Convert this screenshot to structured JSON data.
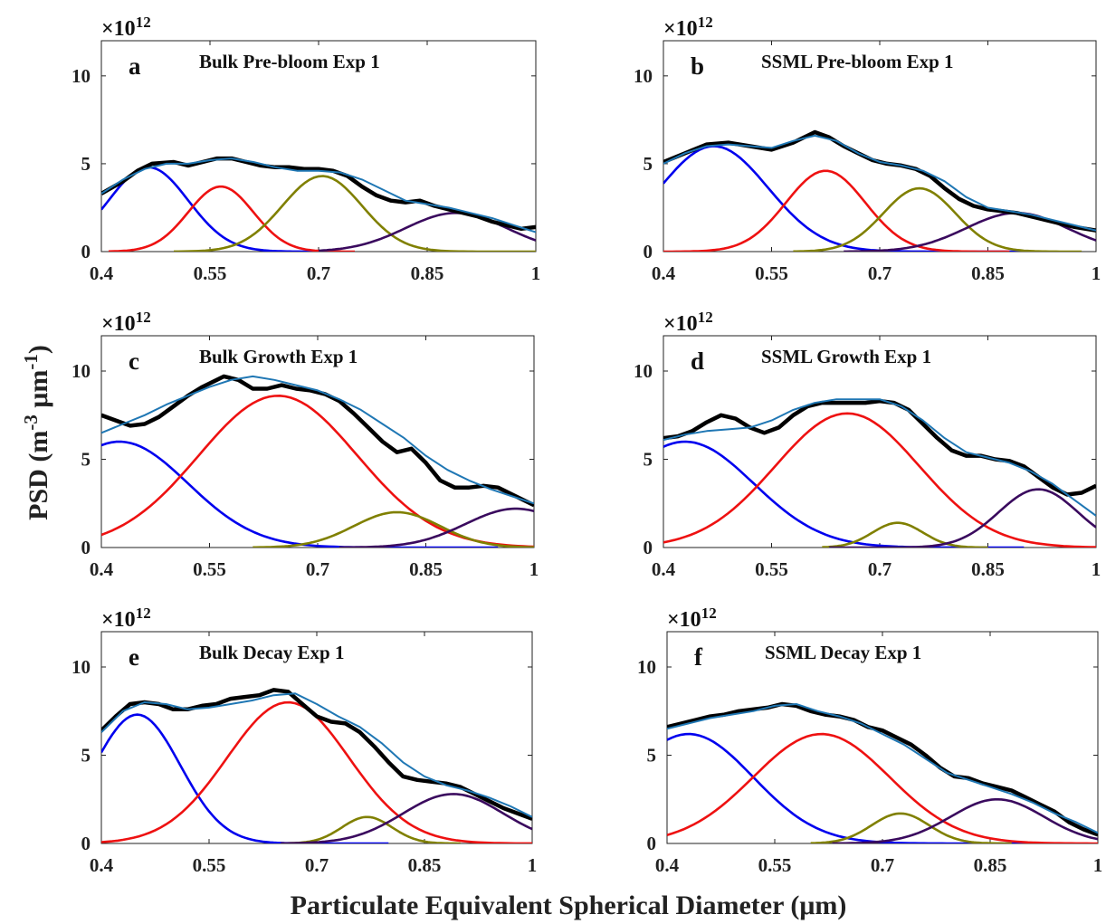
{
  "figure": {
    "xlabel": "Particulate Equivalent Spherical Diameter (μm)",
    "ylabel_main": "PSD (m",
    "ylabel_sup1": "-3",
    "ylabel_mid": " μm",
    "ylabel_sup2": "-1",
    "ylabel_end": ")",
    "exp_base": "×10",
    "exp_power": "12",
    "series_colors": {
      "measured": "#000000",
      "fit": "#1f77b4",
      "mode1": "#0000ee",
      "mode2": "#ee1111",
      "mode3": "#808000",
      "mode4": "#3a0a5e"
    }
  },
  "chart_data": [
    {
      "type": "line",
      "letter": "a",
      "title": "Bulk Pre-bloom Exp 1",
      "xlim": [
        0.4,
        1.0
      ],
      "ylim": [
        0,
        12
      ],
      "xticks": [
        "0.4",
        "0.55",
        "0.7",
        "0.85",
        "1"
      ],
      "yticks": [
        "0",
        "5",
        "10"
      ],
      "grid": false,
      "measured": {
        "x": [
          0.4,
          0.43,
          0.45,
          0.47,
          0.5,
          0.52,
          0.55,
          0.56,
          0.58,
          0.6,
          0.62,
          0.64,
          0.66,
          0.68,
          0.7,
          0.72,
          0.74,
          0.76,
          0.78,
          0.8,
          0.82,
          0.84,
          0.86,
          0.88,
          0.9,
          0.92,
          0.94,
          0.96,
          0.98,
          1.0
        ],
        "y": [
          3.3,
          4.0,
          4.6,
          5.0,
          5.1,
          4.9,
          5.2,
          5.3,
          5.3,
          5.1,
          4.9,
          4.8,
          4.8,
          4.7,
          4.7,
          4.6,
          4.3,
          3.7,
          3.2,
          2.9,
          2.8,
          2.9,
          2.6,
          2.4,
          2.2,
          2.0,
          1.7,
          1.5,
          1.3,
          1.4
        ]
      },
      "fit": {
        "x": [
          0.4,
          0.43,
          0.46,
          0.49,
          0.52,
          0.55,
          0.58,
          0.61,
          0.64,
          0.67,
          0.7,
          0.73,
          0.76,
          0.79,
          0.82,
          0.85,
          0.88,
          0.91,
          0.94,
          0.97,
          1.0
        ],
        "y": [
          3.3,
          4.1,
          4.7,
          5.0,
          5.0,
          5.2,
          5.3,
          5.1,
          4.8,
          4.6,
          4.6,
          4.5,
          4.1,
          3.5,
          2.9,
          2.7,
          2.5,
          2.2,
          1.9,
          1.5,
          1.1
        ]
      },
      "modes": [
        {
          "amplitude": 4.8,
          "center": 0.465,
          "sigma": 0.055,
          "x_range": [
            0.4,
            0.72
          ]
        },
        {
          "amplitude": 3.7,
          "center": 0.565,
          "sigma": 0.045,
          "x_range": [
            0.41,
            0.75
          ]
        },
        {
          "amplitude": 4.3,
          "center": 0.705,
          "sigma": 0.055,
          "x_range": [
            0.5,
            1.0
          ]
        },
        {
          "amplitude": 2.2,
          "center": 0.89,
          "sigma": 0.07,
          "x_range": [
            0.7,
            1.0
          ]
        }
      ]
    },
    {
      "type": "line",
      "letter": "b",
      "title": "SSML Pre-bloom Exp 1",
      "xlim": [
        0.4,
        1.0
      ],
      "ylim": [
        0,
        12
      ],
      "xticks": [
        "0.4",
        "0.55",
        "0.7",
        "0.85",
        "1"
      ],
      "yticks": [
        "0",
        "5",
        "10"
      ],
      "grid": false,
      "measured": {
        "x": [
          0.4,
          0.43,
          0.46,
          0.49,
          0.52,
          0.55,
          0.58,
          0.61,
          0.63,
          0.65,
          0.67,
          0.69,
          0.71,
          0.73,
          0.75,
          0.77,
          0.79,
          0.81,
          0.83,
          0.85,
          0.87,
          0.89,
          0.91,
          0.93,
          0.95,
          0.97,
          1.0
        ],
        "y": [
          5.1,
          5.6,
          6.1,
          6.2,
          6.0,
          5.8,
          6.2,
          6.8,
          6.5,
          6.0,
          5.6,
          5.2,
          5.0,
          4.9,
          4.7,
          4.3,
          3.6,
          3.0,
          2.6,
          2.4,
          2.3,
          2.2,
          2.0,
          1.8,
          1.6,
          1.4,
          1.2
        ]
      },
      "fit": {
        "x": [
          0.4,
          0.43,
          0.46,
          0.49,
          0.52,
          0.55,
          0.58,
          0.61,
          0.64,
          0.67,
          0.7,
          0.73,
          0.76,
          0.79,
          0.82,
          0.85,
          0.88,
          0.91,
          0.94,
          0.97,
          1.0
        ],
        "y": [
          5.0,
          5.6,
          6.0,
          6.1,
          6.0,
          5.9,
          6.3,
          6.6,
          6.3,
          5.6,
          5.1,
          4.9,
          4.6,
          4.0,
          3.1,
          2.5,
          2.3,
          2.1,
          1.8,
          1.5,
          1.2
        ]
      },
      "modes": [
        {
          "amplitude": 6.0,
          "center": 0.47,
          "sigma": 0.075,
          "x_range": [
            0.4,
            0.9
          ]
        },
        {
          "amplitude": 4.6,
          "center": 0.625,
          "sigma": 0.055,
          "x_range": [
            0.4,
            0.88
          ]
        },
        {
          "amplitude": 3.6,
          "center": 0.755,
          "sigma": 0.05,
          "x_range": [
            0.58,
            0.98
          ]
        },
        {
          "amplitude": 2.2,
          "center": 0.89,
          "sigma": 0.07,
          "x_range": [
            0.65,
            1.0
          ]
        }
      ]
    },
    {
      "type": "line",
      "letter": "c",
      "title": "Bulk Growth Exp 1",
      "xlim": [
        0.4,
        1.0
      ],
      "ylim": [
        0,
        12
      ],
      "xticks": [
        "0.4",
        "0.55",
        "0.7",
        "0.85",
        "1"
      ],
      "yticks": [
        "0",
        "5",
        "10"
      ],
      "grid": false,
      "measured": {
        "x": [
          0.4,
          0.42,
          0.44,
          0.46,
          0.48,
          0.5,
          0.52,
          0.54,
          0.56,
          0.57,
          0.59,
          0.61,
          0.63,
          0.65,
          0.67,
          0.69,
          0.71,
          0.73,
          0.75,
          0.77,
          0.79,
          0.81,
          0.83,
          0.85,
          0.87,
          0.89,
          0.91,
          0.93,
          0.95,
          0.97,
          1.0
        ],
        "y": [
          7.5,
          7.2,
          6.9,
          7.0,
          7.4,
          8.0,
          8.6,
          9.1,
          9.5,
          9.7,
          9.5,
          9.0,
          9.0,
          9.2,
          9.0,
          8.9,
          8.7,
          8.3,
          7.6,
          6.8,
          6.0,
          5.4,
          5.6,
          4.8,
          3.8,
          3.4,
          3.4,
          3.5,
          3.4,
          3.0,
          2.4
        ]
      },
      "fit": {
        "x": [
          0.4,
          0.43,
          0.46,
          0.49,
          0.52,
          0.55,
          0.58,
          0.61,
          0.64,
          0.67,
          0.7,
          0.73,
          0.76,
          0.79,
          0.82,
          0.85,
          0.88,
          0.91,
          0.94,
          0.97,
          1.0
        ],
        "y": [
          6.5,
          7.0,
          7.5,
          8.1,
          8.6,
          9.1,
          9.5,
          9.7,
          9.5,
          9.2,
          8.9,
          8.4,
          7.8,
          7.0,
          6.2,
          5.2,
          4.4,
          3.8,
          3.3,
          2.9,
          2.5
        ]
      },
      "modes": [
        {
          "amplitude": 6.0,
          "center": 0.425,
          "sigma": 0.095,
          "x_range": [
            0.4,
            0.95
          ]
        },
        {
          "amplitude": 8.6,
          "center": 0.645,
          "sigma": 0.11,
          "x_range": [
            0.4,
            1.0
          ]
        },
        {
          "amplitude": 2.0,
          "center": 0.81,
          "sigma": 0.06,
          "x_range": [
            0.61,
            1.0
          ]
        },
        {
          "amplitude": 2.2,
          "center": 0.975,
          "sigma": 0.07,
          "x_range": [
            0.73,
            1.0
          ]
        }
      ]
    },
    {
      "type": "line",
      "letter": "d",
      "title": "SSML Growth Exp 1",
      "xlim": [
        0.4,
        1.0
      ],
      "ylim": [
        0,
        12
      ],
      "xticks": [
        "0.4",
        "0.55",
        "0.7",
        "0.85",
        "1"
      ],
      "yticks": [
        "0",
        "5",
        "10"
      ],
      "grid": false,
      "measured": {
        "x": [
          0.4,
          0.42,
          0.44,
          0.46,
          0.48,
          0.5,
          0.52,
          0.54,
          0.56,
          0.58,
          0.6,
          0.62,
          0.64,
          0.66,
          0.68,
          0.7,
          0.72,
          0.74,
          0.76,
          0.78,
          0.8,
          0.82,
          0.84,
          0.86,
          0.88,
          0.9,
          0.92,
          0.94,
          0.96,
          0.98,
          1.0
        ],
        "y": [
          6.2,
          6.3,
          6.6,
          7.1,
          7.5,
          7.3,
          6.8,
          6.5,
          6.8,
          7.5,
          8.0,
          8.2,
          8.2,
          8.2,
          8.2,
          8.3,
          8.2,
          7.8,
          7.0,
          6.2,
          5.5,
          5.2,
          5.2,
          5.0,
          4.9,
          4.6,
          4.0,
          3.4,
          3.0,
          3.1,
          3.5
        ]
      },
      "fit": {
        "x": [
          0.4,
          0.43,
          0.46,
          0.49,
          0.52,
          0.55,
          0.58,
          0.61,
          0.64,
          0.67,
          0.7,
          0.73,
          0.76,
          0.79,
          0.82,
          0.85,
          0.88,
          0.91,
          0.94,
          0.97,
          1.0
        ],
        "y": [
          6.1,
          6.4,
          6.6,
          6.7,
          6.8,
          7.2,
          7.8,
          8.2,
          8.4,
          8.4,
          8.4,
          8.0,
          7.2,
          6.2,
          5.4,
          5.1,
          4.8,
          4.3,
          3.6,
          2.7,
          1.8
        ]
      },
      "modes": [
        {
          "amplitude": 6.0,
          "center": 0.43,
          "sigma": 0.095,
          "x_range": [
            0.4,
            0.9
          ]
        },
        {
          "amplitude": 7.6,
          "center": 0.655,
          "sigma": 0.1,
          "x_range": [
            0.4,
            1.0
          ]
        },
        {
          "amplitude": 1.4,
          "center": 0.725,
          "sigma": 0.035,
          "x_range": [
            0.62,
            0.85
          ]
        },
        {
          "amplitude": 3.3,
          "center": 0.92,
          "sigma": 0.055,
          "x_range": [
            0.63,
            1.0
          ]
        }
      ]
    },
    {
      "type": "line",
      "letter": "e",
      "title": "Bulk Decay Exp 1",
      "xlim": [
        0.4,
        1.0
      ],
      "ylim": [
        0,
        12
      ],
      "xticks": [
        "0.4",
        "0.55",
        "0.7",
        "0.85",
        "1"
      ],
      "yticks": [
        "0",
        "5",
        "10"
      ],
      "grid": false,
      "measured": {
        "x": [
          0.4,
          0.42,
          0.44,
          0.46,
          0.48,
          0.5,
          0.52,
          0.54,
          0.56,
          0.58,
          0.6,
          0.62,
          0.64,
          0.66,
          0.68,
          0.7,
          0.72,
          0.74,
          0.76,
          0.78,
          0.8,
          0.82,
          0.84,
          0.86,
          0.88,
          0.9,
          0.92,
          0.94,
          0.96,
          0.98,
          1.0
        ],
        "y": [
          6.4,
          7.2,
          7.9,
          8.0,
          7.9,
          7.6,
          7.6,
          7.8,
          7.9,
          8.2,
          8.3,
          8.4,
          8.7,
          8.6,
          7.9,
          7.2,
          6.9,
          6.8,
          6.3,
          5.5,
          4.6,
          3.8,
          3.6,
          3.5,
          3.4,
          3.2,
          2.8,
          2.4,
          2.0,
          1.7,
          1.4
        ]
      },
      "fit": {
        "x": [
          0.4,
          0.43,
          0.46,
          0.49,
          0.52,
          0.55,
          0.58,
          0.61,
          0.64,
          0.67,
          0.7,
          0.73,
          0.76,
          0.79,
          0.82,
          0.85,
          0.88,
          0.91,
          0.94,
          0.97,
          1.0
        ],
        "y": [
          6.3,
          7.5,
          8.0,
          7.9,
          7.6,
          7.7,
          7.9,
          8.1,
          8.4,
          8.5,
          7.9,
          7.2,
          6.6,
          5.7,
          4.6,
          3.8,
          3.3,
          3.0,
          2.6,
          2.1,
          1.5
        ]
      },
      "modes": [
        {
          "amplitude": 7.3,
          "center": 0.45,
          "sigma": 0.06,
          "x_range": [
            0.4,
            0.8
          ]
        },
        {
          "amplitude": 8.0,
          "center": 0.66,
          "sigma": 0.085,
          "x_range": [
            0.4,
            1.0
          ]
        },
        {
          "amplitude": 1.5,
          "center": 0.77,
          "sigma": 0.035,
          "x_range": [
            0.66,
            0.9
          ]
        },
        {
          "amplitude": 2.8,
          "center": 0.89,
          "sigma": 0.07,
          "x_range": [
            0.65,
            1.0
          ]
        }
      ]
    },
    {
      "type": "line",
      "letter": "f",
      "title": "SSML Decay Exp 1",
      "xlim": [
        0.4,
        1.0
      ],
      "ylim": [
        0,
        12
      ],
      "xticks": [
        "0.4",
        "0.55",
        "0.7",
        "0.85",
        "1"
      ],
      "yticks": [
        "0",
        "5",
        "10"
      ],
      "grid": false,
      "measured": {
        "x": [
          0.4,
          0.42,
          0.44,
          0.46,
          0.48,
          0.5,
          0.52,
          0.54,
          0.56,
          0.58,
          0.6,
          0.62,
          0.64,
          0.66,
          0.68,
          0.7,
          0.72,
          0.74,
          0.76,
          0.78,
          0.8,
          0.82,
          0.84,
          0.86,
          0.88,
          0.9,
          0.92,
          0.94,
          0.96,
          0.98,
          1.0
        ],
        "y": [
          6.6,
          6.8,
          7.0,
          7.2,
          7.3,
          7.5,
          7.6,
          7.7,
          7.9,
          7.8,
          7.5,
          7.3,
          7.2,
          7.0,
          6.6,
          6.4,
          6.0,
          5.6,
          5.0,
          4.3,
          3.8,
          3.7,
          3.4,
          3.2,
          3.0,
          2.6,
          2.2,
          1.8,
          1.2,
          0.8,
          0.5
        ]
      },
      "fit": {
        "x": [
          0.4,
          0.43,
          0.46,
          0.49,
          0.52,
          0.55,
          0.58,
          0.61,
          0.64,
          0.67,
          0.7,
          0.73,
          0.76,
          0.79,
          0.82,
          0.85,
          0.88,
          0.91,
          0.94,
          0.97,
          1.0
        ],
        "y": [
          6.5,
          6.8,
          7.1,
          7.3,
          7.5,
          7.8,
          7.9,
          7.5,
          7.2,
          6.8,
          6.2,
          5.6,
          4.8,
          4.0,
          3.6,
          3.2,
          2.8,
          2.3,
          1.7,
          1.2,
          0.6
        ]
      },
      "modes": [
        {
          "amplitude": 6.2,
          "center": 0.43,
          "sigma": 0.09,
          "x_range": [
            0.4,
            0.92
          ]
        },
        {
          "amplitude": 6.2,
          "center": 0.615,
          "sigma": 0.095,
          "x_range": [
            0.4,
            1.0
          ]
        },
        {
          "amplitude": 1.7,
          "center": 0.725,
          "sigma": 0.04,
          "x_range": [
            0.6,
            0.88
          ]
        },
        {
          "amplitude": 2.5,
          "center": 0.86,
          "sigma": 0.065,
          "x_range": [
            0.63,
            1.0
          ]
        }
      ]
    }
  ]
}
